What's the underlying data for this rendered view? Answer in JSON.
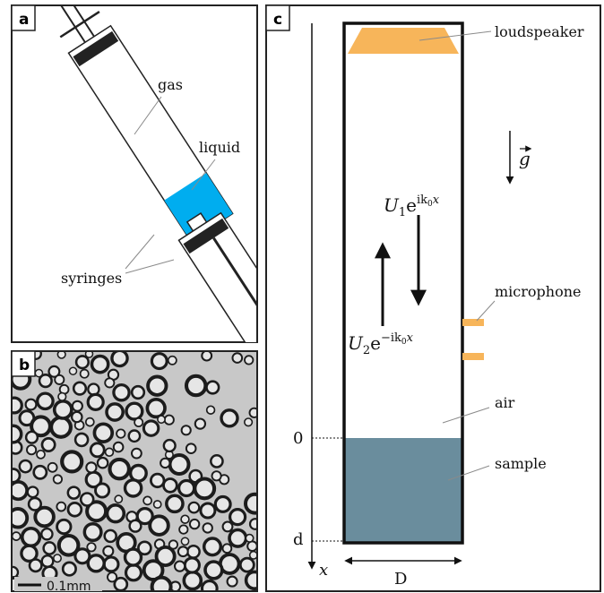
{
  "panels": {
    "a": {
      "letter": "a",
      "labels": {
        "gas": "gas",
        "liquid": "liquid",
        "syringes": "syringes"
      }
    },
    "b": {
      "letter": "b",
      "scale_bar_label": "0.1mm"
    },
    "c": {
      "letter": "c",
      "labels": {
        "loudspeaker": "loudspeaker",
        "microphone": "microphone",
        "air": "air",
        "sample": "sample",
        "gravity_symbol": "g",
        "wave_incident_U": "U",
        "wave_incident_sub": "1",
        "wave_incident_e": "e",
        "wave_incident_exp": "ik",
        "wave_incident_exp_sub": "0",
        "wave_incident_exp_x": "x",
        "wave_reflected_U": "U",
        "wave_reflected_sub": "2",
        "wave_reflected_e": "e",
        "wave_reflected_exp": "−ik",
        "wave_reflected_exp_sub": "0",
        "wave_reflected_exp_x": "x",
        "axis_zero": "0",
        "axis_d": "d",
        "axis_x": "x",
        "width_D": "D"
      }
    }
  },
  "colors": {
    "liquid": "#00adef",
    "loudspeaker": "#f7b55a",
    "microphone": "#f7b55a",
    "sample": "#6a8d9d",
    "frame": "#222222",
    "leader_line": "#8a8a8a",
    "micrograph_bg": "#c8c8c8"
  }
}
